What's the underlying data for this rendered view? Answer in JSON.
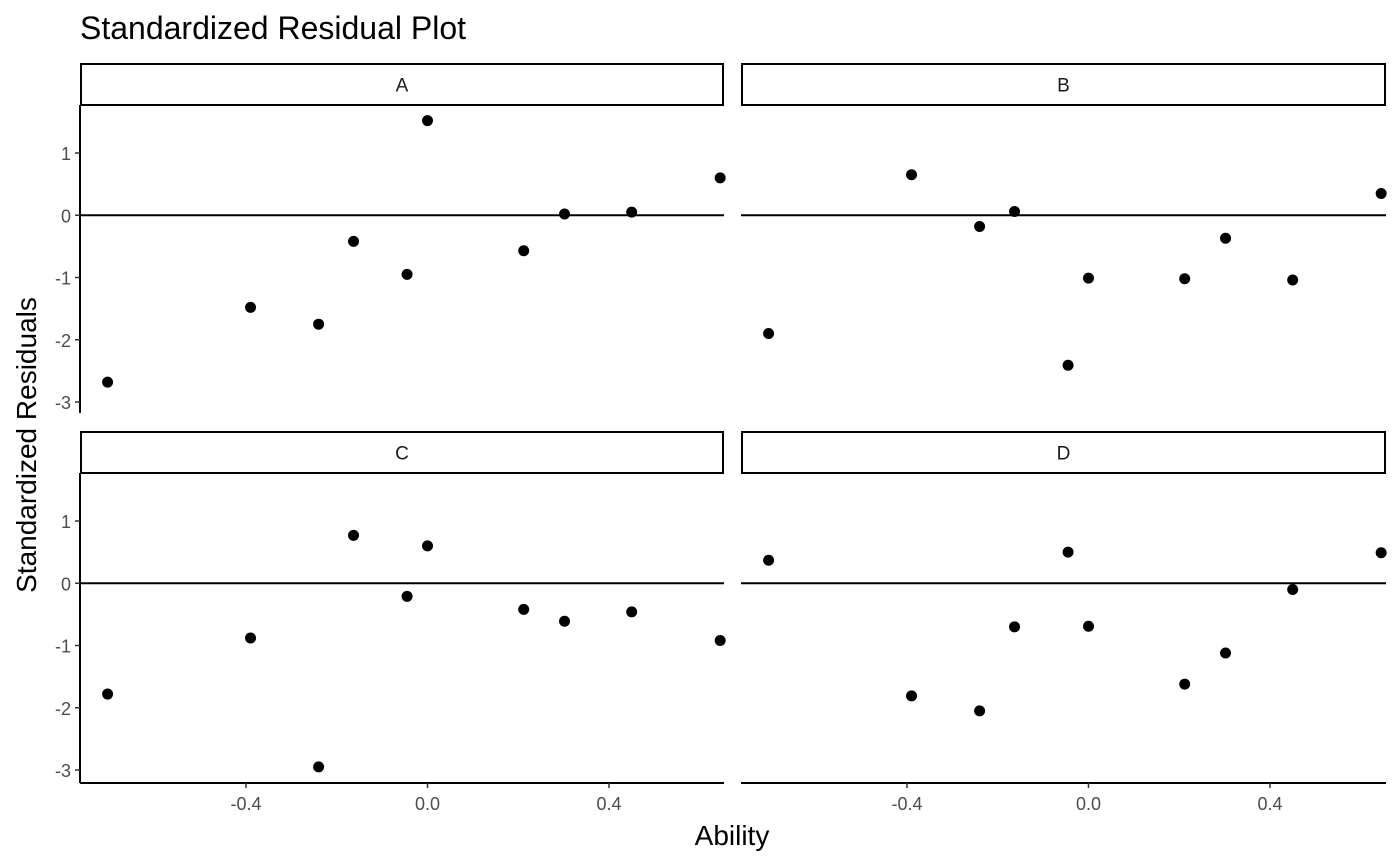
{
  "chart_data": {
    "type": "scatter",
    "title": "Standardized Residual Plot",
    "xlabel": "Ability",
    "ylabel": "Standardized Residuals",
    "xlim": [
      -0.72,
      0.72
    ],
    "ylim": [
      -3.1,
      1.7
    ],
    "x_ticks": [
      -0.4,
      0.0,
      0.4
    ],
    "x_tick_labels": [
      "-0.4",
      "0.0",
      "0.4"
    ],
    "y_ticks": [
      -3,
      -2,
      -1,
      0,
      1
    ],
    "y_tick_labels": [
      "-3",
      "-2",
      "-1",
      "0",
      "1"
    ],
    "reference_line_y": 0,
    "grid": false,
    "facets": [
      {
        "label": "A",
        "x": [
          -0.705,
          -0.39,
          -0.24,
          -0.163,
          -0.045,
          0.0,
          0.212,
          0.302,
          0.45,
          0.645
        ],
        "y": [
          -2.68,
          -1.48,
          -1.75,
          -0.42,
          -0.95,
          1.52,
          -0.57,
          0.02,
          0.05,
          0.6
        ]
      },
      {
        "label": "B",
        "x": [
          -0.705,
          -0.39,
          -0.24,
          -0.163,
          -0.045,
          0.0,
          0.212,
          0.302,
          0.45,
          0.645
        ],
        "y": [
          -1.9,
          0.65,
          -0.18,
          0.06,
          -2.41,
          -1.01,
          -1.02,
          -0.37,
          -1.04,
          0.35
        ]
      },
      {
        "label": "C",
        "x": [
          -0.705,
          -0.39,
          -0.24,
          -0.163,
          -0.045,
          0.0,
          0.212,
          0.302,
          0.45,
          0.645
        ],
        "y": [
          -1.78,
          -0.88,
          -2.95,
          0.77,
          -0.21,
          0.6,
          -0.42,
          -0.61,
          -0.46,
          -0.92
        ]
      },
      {
        "label": "D",
        "x": [
          -0.705,
          -0.39,
          -0.24,
          -0.163,
          -0.045,
          0.0,
          0.212,
          0.302,
          0.45,
          0.645
        ],
        "y": [
          0.37,
          -1.81,
          -2.05,
          -0.7,
          0.5,
          -0.69,
          -1.62,
          -1.12,
          -0.1,
          0.49
        ]
      }
    ]
  }
}
